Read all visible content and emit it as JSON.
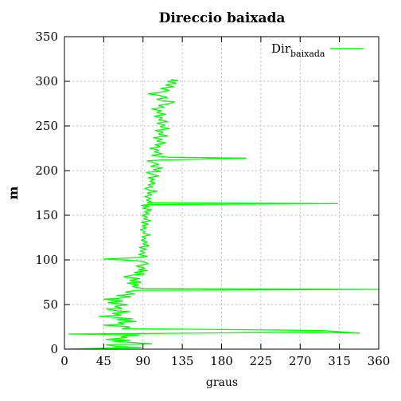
{
  "chart_data": {
    "type": "line",
    "title": "Direccio baixada",
    "xlabel": "graus",
    "ylabel": "m",
    "xlim": [
      0,
      360
    ],
    "ylim": [
      0,
      350
    ],
    "xticks": [
      0,
      45,
      90,
      135,
      180,
      225,
      270,
      315,
      360
    ],
    "yticks": [
      0,
      50,
      100,
      150,
      200,
      250,
      300,
      350
    ],
    "grid": true,
    "legend_position": "top-right",
    "series": [
      {
        "name": "Dir",
        "name_subscript": "baixada",
        "color": "#00ff00",
        "points": [
          [
            0,
            0
          ],
          [
            40,
            1
          ],
          [
            88,
            2
          ],
          [
            60,
            3
          ],
          [
            48,
            5
          ],
          [
            100,
            6
          ],
          [
            70,
            8
          ],
          [
            55,
            9
          ],
          [
            75,
            10
          ],
          [
            48,
            11
          ],
          [
            60,
            12
          ],
          [
            72,
            13
          ],
          [
            65,
            14
          ],
          [
            70,
            15
          ],
          [
            85,
            16
          ],
          [
            5,
            17
          ],
          [
            290,
            19
          ],
          [
            338,
            18
          ],
          [
            295,
            21
          ],
          [
            66,
            23
          ],
          [
            75,
            25
          ],
          [
            45,
            27
          ],
          [
            68,
            28
          ],
          [
            62,
            30
          ],
          [
            82,
            31
          ],
          [
            70,
            32
          ],
          [
            60,
            33
          ],
          [
            78,
            34
          ],
          [
            40,
            37
          ],
          [
            65,
            38
          ],
          [
            55,
            40
          ],
          [
            75,
            42
          ],
          [
            60,
            43
          ],
          [
            48,
            45
          ],
          [
            66,
            46
          ],
          [
            58,
            48
          ],
          [
            72,
            50
          ],
          [
            50,
            52
          ],
          [
            67,
            54
          ],
          [
            45,
            56
          ],
          [
            63,
            57
          ],
          [
            76,
            59
          ],
          [
            60,
            60
          ],
          [
            80,
            62
          ],
          [
            70,
            64
          ],
          [
            82,
            66
          ],
          [
            360,
            67
          ],
          [
            90,
            68
          ],
          [
            78,
            70
          ],
          [
            85,
            72
          ],
          [
            72,
            74
          ],
          [
            88,
            75
          ],
          [
            75,
            77
          ],
          [
            86,
            79
          ],
          [
            68,
            81
          ],
          [
            78,
            83
          ],
          [
            92,
            84
          ],
          [
            80,
            86
          ],
          [
            95,
            88
          ],
          [
            85,
            89
          ],
          [
            92,
            91
          ],
          [
            82,
            93
          ],
          [
            88,
            94
          ],
          [
            96,
            96
          ],
          [
            90,
            98
          ],
          [
            84,
            99
          ],
          [
            45,
            101
          ],
          [
            70,
            102
          ],
          [
            88,
            103
          ],
          [
            95,
            104
          ],
          [
            85,
            106
          ],
          [
            92,
            108
          ],
          [
            87,
            110
          ],
          [
            94,
            112
          ],
          [
            86,
            114
          ],
          [
            97,
            116
          ],
          [
            90,
            118
          ],
          [
            95,
            120
          ],
          [
            88,
            122
          ],
          [
            93,
            124
          ],
          [
            89,
            126
          ],
          [
            98,
            128
          ],
          [
            90,
            130
          ],
          [
            92,
            132
          ],
          [
            87,
            134
          ],
          [
            94,
            136
          ],
          [
            89,
            138
          ],
          [
            96,
            140
          ],
          [
            88,
            142
          ],
          [
            99,
            144
          ],
          [
            91,
            146
          ],
          [
            95,
            148
          ],
          [
            89,
            150
          ],
          [
            97,
            152
          ],
          [
            92,
            154
          ],
          [
            100,
            156
          ],
          [
            90,
            158
          ],
          [
            97,
            160
          ],
          [
            88,
            161
          ],
          [
            95,
            162
          ],
          [
            313,
            163
          ],
          [
            95,
            164
          ],
          [
            100,
            165
          ],
          [
            94,
            167
          ],
          [
            99,
            169
          ],
          [
            92,
            171
          ],
          [
            100,
            173
          ],
          [
            95,
            175
          ],
          [
            106,
            177
          ],
          [
            98,
            178
          ],
          [
            92,
            180
          ],
          [
            101,
            182
          ],
          [
            96,
            184
          ],
          [
            104,
            186
          ],
          [
            98,
            188
          ],
          [
            103,
            190
          ],
          [
            96,
            192
          ],
          [
            108,
            194
          ],
          [
            100,
            196
          ],
          [
            94,
            198
          ],
          [
            110,
            199
          ],
          [
            102,
            201
          ],
          [
            112,
            203
          ],
          [
            99,
            205
          ],
          [
            108,
            207
          ],
          [
            102,
            209
          ],
          [
            95,
            211
          ],
          [
            112,
            212
          ],
          [
            208,
            214
          ],
          [
            118,
            215
          ],
          [
            100,
            217
          ],
          [
            112,
            219
          ],
          [
            103,
            221
          ],
          [
            108,
            223
          ],
          [
            98,
            225
          ],
          [
            110,
            227
          ],
          [
            104,
            229
          ],
          [
            116,
            231
          ],
          [
            106,
            233
          ],
          [
            112,
            235
          ],
          [
            102,
            237
          ],
          [
            118,
            239
          ],
          [
            108,
            241
          ],
          [
            113,
            243
          ],
          [
            104,
            245
          ],
          [
            120,
            247
          ],
          [
            110,
            249
          ],
          [
            115,
            251
          ],
          [
            106,
            253
          ],
          [
            118,
            255
          ],
          [
            108,
            257
          ],
          [
            112,
            259
          ],
          [
            103,
            261
          ],
          [
            116,
            263
          ],
          [
            106,
            265
          ],
          [
            111,
            267
          ],
          [
            100,
            269
          ],
          [
            114,
            271
          ],
          [
            108,
            273
          ],
          [
            120,
            275
          ],
          [
            126,
            277
          ],
          [
            114,
            278
          ],
          [
            106,
            280
          ],
          [
            118,
            282
          ],
          [
            110,
            284
          ],
          [
            96,
            286
          ],
          [
            112,
            288
          ],
          [
            120,
            290
          ],
          [
            110,
            292
          ],
          [
            125,
            294
          ],
          [
            116,
            296
          ],
          [
            128,
            298
          ],
          [
            118,
            300
          ],
          [
            130,
            301
          ],
          [
            122,
            302
          ]
        ]
      }
    ]
  }
}
